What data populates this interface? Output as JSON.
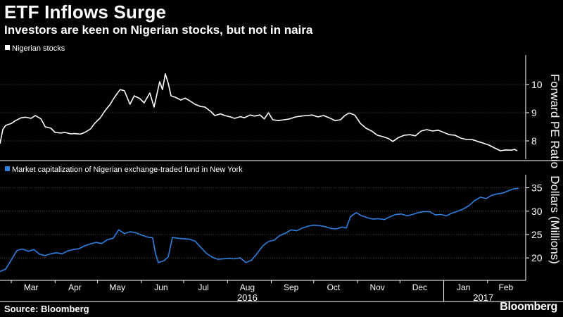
{
  "header": {
    "title": "ETF Inflows Surge",
    "subtitle": "Investors are keen on Nigerian stocks, but not in naira"
  },
  "footer": {
    "source": "Source: Bloomberg",
    "brand": "Bloomberg"
  },
  "colors": {
    "background": "#000000",
    "series_top": "#ffffff",
    "series_bottom": "#2f7fe0",
    "grid": "#555555"
  },
  "chart_data": [
    {
      "type": "line",
      "legend": "Nigerian stocks",
      "ylabel": "Forward PE Ratio",
      "yticks": [
        8,
        9,
        10
      ],
      "ylim": [
        7.45,
        10.95
      ],
      "xlim": [
        "2016-02-22",
        "2017-02-28"
      ],
      "grid": true,
      "series": [
        {
          "name": "Nigerian stocks",
          "color": "#ffffff",
          "points": [
            [
              "2016-02-22",
              7.9
            ],
            [
              "2016-02-24",
              8.4
            ],
            [
              "2016-02-26",
              8.55
            ],
            [
              "2016-03-01",
              8.62
            ],
            [
              "2016-03-04",
              8.72
            ],
            [
              "2016-03-08",
              8.82
            ],
            [
              "2016-03-11",
              8.84
            ],
            [
              "2016-03-15",
              8.8
            ],
            [
              "2016-03-18",
              8.9
            ],
            [
              "2016-03-22",
              8.78
            ],
            [
              "2016-03-25",
              8.5
            ],
            [
              "2016-03-29",
              8.45
            ],
            [
              "2016-04-01",
              8.3
            ],
            [
              "2016-04-05",
              8.28
            ],
            [
              "2016-04-08",
              8.3
            ],
            [
              "2016-04-12",
              8.25
            ],
            [
              "2016-04-15",
              8.26
            ],
            [
              "2016-04-19",
              8.24
            ],
            [
              "2016-04-22",
              8.3
            ],
            [
              "2016-04-26",
              8.42
            ],
            [
              "2016-04-29",
              8.62
            ],
            [
              "2016-05-03",
              8.82
            ],
            [
              "2016-05-06",
              9.05
            ],
            [
              "2016-05-10",
              9.3
            ],
            [
              "2016-05-13",
              9.55
            ],
            [
              "2016-05-17",
              9.82
            ],
            [
              "2016-05-20",
              9.78
            ],
            [
              "2016-05-24",
              9.3
            ],
            [
              "2016-05-27",
              9.6
            ],
            [
              "2016-05-31",
              9.5
            ],
            [
              "2016-06-03",
              9.35
            ],
            [
              "2016-06-07",
              9.7
            ],
            [
              "2016-06-10",
              9.2
            ],
            [
              "2016-06-14",
              10.1
            ],
            [
              "2016-06-16",
              9.82
            ],
            [
              "2016-06-18",
              10.38
            ],
            [
              "2016-06-20",
              10.05
            ],
            [
              "2016-06-22",
              9.6
            ],
            [
              "2016-06-25",
              9.55
            ],
            [
              "2016-06-29",
              9.45
            ],
            [
              "2016-07-02",
              9.52
            ],
            [
              "2016-07-06",
              9.4
            ],
            [
              "2016-07-09",
              9.3
            ],
            [
              "2016-07-13",
              9.22
            ],
            [
              "2016-07-16",
              9.2
            ],
            [
              "2016-07-20",
              9.05
            ],
            [
              "2016-07-23",
              8.9
            ],
            [
              "2016-07-27",
              8.96
            ],
            [
              "2016-07-30",
              8.9
            ],
            [
              "2016-08-03",
              8.85
            ],
            [
              "2016-08-06",
              8.8
            ],
            [
              "2016-08-10",
              8.86
            ],
            [
              "2016-08-13",
              8.82
            ],
            [
              "2016-08-17",
              8.92
            ],
            [
              "2016-08-20",
              8.88
            ],
            [
              "2016-08-24",
              8.92
            ],
            [
              "2016-08-27",
              8.78
            ],
            [
              "2016-08-30",
              9.0
            ],
            [
              "2016-09-02",
              8.75
            ],
            [
              "2016-09-06",
              8.72
            ],
            [
              "2016-09-10",
              8.75
            ],
            [
              "2016-09-14",
              8.78
            ],
            [
              "2016-09-18",
              8.85
            ],
            [
              "2016-09-22",
              8.88
            ],
            [
              "2016-09-26",
              8.9
            ],
            [
              "2016-09-30",
              8.92
            ],
            [
              "2016-10-04",
              8.85
            ],
            [
              "2016-10-08",
              8.9
            ],
            [
              "2016-10-12",
              8.82
            ],
            [
              "2016-10-16",
              8.72
            ],
            [
              "2016-10-20",
              8.75
            ],
            [
              "2016-10-23",
              8.9
            ],
            [
              "2016-10-26",
              8.99
            ],
            [
              "2016-10-30",
              8.92
            ],
            [
              "2016-11-03",
              8.62
            ],
            [
              "2016-11-07",
              8.45
            ],
            [
              "2016-11-11",
              8.35
            ],
            [
              "2016-11-15",
              8.2
            ],
            [
              "2016-11-19",
              8.15
            ],
            [
              "2016-11-23",
              8.08
            ],
            [
              "2016-11-26",
              7.98
            ],
            [
              "2016-11-30",
              8.12
            ],
            [
              "2016-12-04",
              8.2
            ],
            [
              "2016-12-08",
              8.22
            ],
            [
              "2016-12-12",
              8.18
            ],
            [
              "2016-12-16",
              8.35
            ],
            [
              "2016-12-20",
              8.4
            ],
            [
              "2016-12-24",
              8.35
            ],
            [
              "2016-12-28",
              8.38
            ],
            [
              "2017-01-01",
              8.3
            ],
            [
              "2017-01-05",
              8.22
            ],
            [
              "2017-01-09",
              8.2
            ],
            [
              "2017-01-13",
              8.1
            ],
            [
              "2017-01-17",
              8.05
            ],
            [
              "2017-01-21",
              8.05
            ],
            [
              "2017-01-25",
              7.98
            ],
            [
              "2017-01-29",
              7.92
            ],
            [
              "2017-02-02",
              7.85
            ],
            [
              "2017-02-06",
              7.75
            ],
            [
              "2017-02-10",
              7.65
            ],
            [
              "2017-02-14",
              7.68
            ],
            [
              "2017-02-18",
              7.67
            ],
            [
              "2017-02-20",
              7.7
            ],
            [
              "2017-02-22",
              7.65
            ]
          ]
        }
      ]
    },
    {
      "type": "line",
      "legend": "Market capitalization of Nigerian exchange-traded fund in New York",
      "ylabel": "Dollars (Millions)",
      "yticks": [
        20,
        25,
        30,
        35
      ],
      "ylim": [
        15.8,
        37.2
      ],
      "xlim": [
        "2016-02-22",
        "2017-02-28"
      ],
      "grid": true,
      "series": [
        {
          "name": "Market capitalization of Nigerian exchange-traded fund in New York",
          "color": "#2f7fe0",
          "points": [
            [
              "2016-02-22",
              17.1
            ],
            [
              "2016-02-26",
              17.6
            ],
            [
              "2016-03-01",
              19.6
            ],
            [
              "2016-03-05",
              21.6
            ],
            [
              "2016-03-09",
              21.9
            ],
            [
              "2016-03-13",
              21.4
            ],
            [
              "2016-03-17",
              21.8
            ],
            [
              "2016-03-21",
              20.8
            ],
            [
              "2016-03-25",
              20.5
            ],
            [
              "2016-03-29",
              20.9
            ],
            [
              "2016-04-02",
              21.1
            ],
            [
              "2016-04-06",
              20.9
            ],
            [
              "2016-04-10",
              21.5
            ],
            [
              "2016-04-14",
              21.8
            ],
            [
              "2016-04-18",
              22.0
            ],
            [
              "2016-04-22",
              22.6
            ],
            [
              "2016-04-26",
              23.0
            ],
            [
              "2016-04-30",
              23.3
            ],
            [
              "2016-05-04",
              23.1
            ],
            [
              "2016-05-08",
              23.9
            ],
            [
              "2016-05-12",
              24.2
            ],
            [
              "2016-05-16",
              26.0
            ],
            [
              "2016-05-20",
              25.2
            ],
            [
              "2016-05-24",
              25.6
            ],
            [
              "2016-05-28",
              25.4
            ],
            [
              "2016-06-01",
              24.9
            ],
            [
              "2016-06-05",
              24.5
            ],
            [
              "2016-06-09",
              24.3
            ],
            [
              "2016-06-11",
              21.0
            ],
            [
              "2016-06-13",
              19.0
            ],
            [
              "2016-06-17",
              19.4
            ],
            [
              "2016-06-20",
              20.2
            ],
            [
              "2016-06-23",
              24.4
            ],
            [
              "2016-06-27",
              24.2
            ],
            [
              "2016-07-01",
              24.1
            ],
            [
              "2016-07-05",
              24.0
            ],
            [
              "2016-07-09",
              23.6
            ],
            [
              "2016-07-13",
              22.3
            ],
            [
              "2016-07-17",
              21.0
            ],
            [
              "2016-07-21",
              20.2
            ],
            [
              "2016-07-25",
              19.7
            ],
            [
              "2016-07-29",
              19.8
            ],
            [
              "2016-08-02",
              19.9
            ],
            [
              "2016-08-06",
              19.8
            ],
            [
              "2016-08-10",
              20.0
            ],
            [
              "2016-08-14",
              19.0
            ],
            [
              "2016-08-18",
              19.5
            ],
            [
              "2016-08-22",
              21.0
            ],
            [
              "2016-08-26",
              22.6
            ],
            [
              "2016-08-30",
              23.5
            ],
            [
              "2016-09-03",
              23.8
            ],
            [
              "2016-09-07",
              24.8
            ],
            [
              "2016-09-11",
              25.3
            ],
            [
              "2016-09-15",
              26.0
            ],
            [
              "2016-09-19",
              25.8
            ],
            [
              "2016-09-23",
              26.4
            ],
            [
              "2016-09-27",
              26.8
            ],
            [
              "2016-10-01",
              27.0
            ],
            [
              "2016-10-05",
              26.9
            ],
            [
              "2016-10-09",
              26.7
            ],
            [
              "2016-10-13",
              26.3
            ],
            [
              "2016-10-17",
              26.2
            ],
            [
              "2016-10-21",
              26.6
            ],
            [
              "2016-10-24",
              26.4
            ],
            [
              "2016-10-27",
              28.8
            ],
            [
              "2016-10-31",
              29.7
            ],
            [
              "2016-11-04",
              29.0
            ],
            [
              "2016-11-08",
              28.6
            ],
            [
              "2016-11-12",
              28.3
            ],
            [
              "2016-11-16",
              28.4
            ],
            [
              "2016-11-20",
              28.2
            ],
            [
              "2016-11-24",
              28.8
            ],
            [
              "2016-11-28",
              29.3
            ],
            [
              "2016-12-02",
              29.4
            ],
            [
              "2016-12-06",
              29.0
            ],
            [
              "2016-12-10",
              29.3
            ],
            [
              "2016-12-14",
              29.7
            ],
            [
              "2016-12-18",
              29.9
            ],
            [
              "2016-12-22",
              29.9
            ],
            [
              "2016-12-26",
              29.2
            ],
            [
              "2016-12-30",
              29.3
            ],
            [
              "2017-01-03",
              29.0
            ],
            [
              "2017-01-07",
              29.6
            ],
            [
              "2017-01-11",
              30.0
            ],
            [
              "2017-01-15",
              30.5
            ],
            [
              "2017-01-19",
              31.2
            ],
            [
              "2017-01-23",
              32.3
            ],
            [
              "2017-01-27",
              33.0
            ],
            [
              "2017-01-31",
              32.7
            ],
            [
              "2017-02-04",
              33.4
            ],
            [
              "2017-02-08",
              33.7
            ],
            [
              "2017-02-12",
              33.9
            ],
            [
              "2017-02-16",
              34.4
            ],
            [
              "2017-02-20",
              34.8
            ],
            [
              "2017-02-23",
              34.9
            ]
          ]
        }
      ]
    }
  ],
  "x_axis": {
    "months": [
      {
        "label": "Mar",
        "date": "2016-03-15"
      },
      {
        "label": "Apr",
        "date": "2016-04-15"
      },
      {
        "label": "May",
        "date": "2016-05-15"
      },
      {
        "label": "Jun",
        "date": "2016-06-15"
      },
      {
        "label": "Jul",
        "date": "2016-07-15"
      },
      {
        "label": "Aug",
        "date": "2016-08-15"
      },
      {
        "label": "Sep",
        "date": "2016-09-15"
      },
      {
        "label": "Oct",
        "date": "2016-10-15"
      },
      {
        "label": "Nov",
        "date": "2016-11-15"
      },
      {
        "label": "Dec",
        "date": "2016-12-15"
      },
      {
        "label": "Jan",
        "date": "2017-01-15"
      },
      {
        "label": "Feb",
        "date": "2017-02-14"
      }
    ],
    "month_boundaries": [
      "2016-03-01",
      "2016-04-01",
      "2016-05-01",
      "2016-06-01",
      "2016-07-01",
      "2016-08-01",
      "2016-09-01",
      "2016-10-01",
      "2016-11-01",
      "2016-12-01",
      "2017-01-01",
      "2017-02-01"
    ],
    "years": [
      {
        "label": "2016",
        "date": "2016-08-15"
      },
      {
        "label": "2017",
        "date": "2017-01-29"
      }
    ],
    "year_boundary": "2017-01-01"
  }
}
